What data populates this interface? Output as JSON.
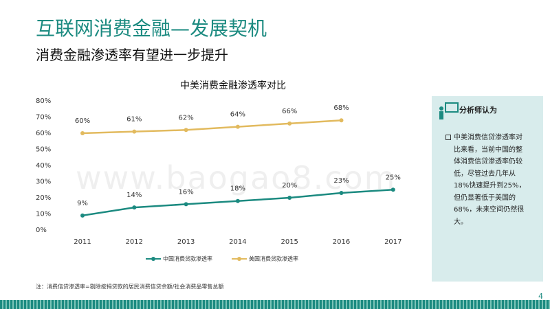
{
  "header": {
    "title": "互联网消费金融—发展契机",
    "subtitle": "消费金融渗透率有望进一步提升"
  },
  "chart_data": {
    "type": "line",
    "title": "中美消费金融渗透率对比",
    "categories": [
      "2011",
      "2012",
      "2013",
      "2014",
      "2015",
      "2016",
      "2017"
    ],
    "series": [
      {
        "name": "中国消费贷款渗透率",
        "color": "#1b8a80",
        "values": [
          9,
          14,
          16,
          18,
          20,
          23,
          25
        ],
        "value_labels": [
          "9%",
          "14%",
          "16%",
          "18%",
          "20%",
          "23%",
          "25%"
        ]
      },
      {
        "name": "美国消费贷款渗透率",
        "color": "#e2ba5e",
        "values": [
          60,
          61,
          62,
          64,
          66,
          68,
          null
        ],
        "value_labels": [
          "60%",
          "61%",
          "62%",
          "64%",
          "66%",
          "68%",
          null
        ]
      }
    ],
    "ylim": [
      0,
      80
    ],
    "yticks": [
      {
        "value": 0,
        "label": "0%"
      },
      {
        "value": 10,
        "label": "10%"
      },
      {
        "value": 20,
        "label": "20%"
      },
      {
        "value": 30,
        "label": "30%"
      },
      {
        "value": 40,
        "label": "40%"
      },
      {
        "value": 50,
        "label": "50%"
      },
      {
        "value": 60,
        "label": "60%"
      },
      {
        "value": 70,
        "label": "70%"
      },
      {
        "value": 80,
        "label": "80%"
      }
    ],
    "legend": "bottom",
    "grid": false
  },
  "note": "注：消费信贷渗透率=剔除按揭贷款的居民消费信贷余额/社会消费品零售总额",
  "sidebar": {
    "title": "分析师认为",
    "text": "中美消费信贷渗透率对比来看，当前中国的整体消费信贷渗透率仍较低，尽管过去几年从18%快速提升到25%，但仍显著低于美国的68%，未来空间仍然很大。"
  },
  "watermark": "www.baogao8.com",
  "page_number": "4"
}
